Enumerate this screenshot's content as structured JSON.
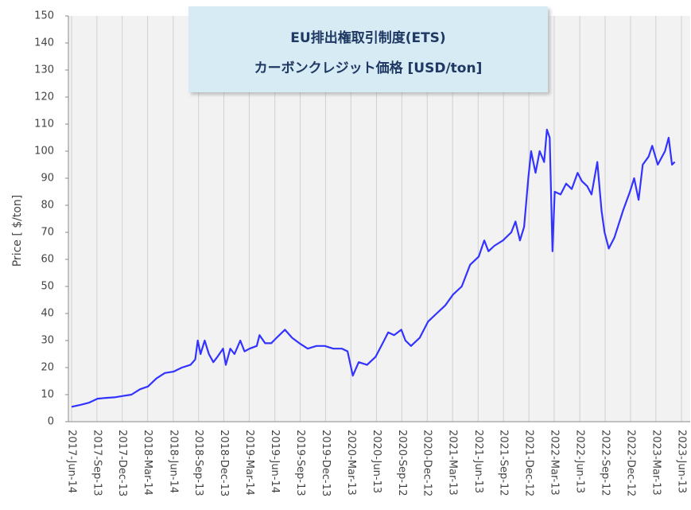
{
  "chart_data": {
    "type": "line",
    "title": "EU排出権取引制度(ETS)",
    "subtitle": "カーボンクレジット価格 [USD/ton]",
    "y_label": "Price [ $/ton]",
    "grid": true,
    "series": [
      {
        "name": "Price",
        "color": "#3333ff",
        "x": [
          "2017-06-14",
          "2017-07-15",
          "2017-08-15",
          "2017-09-15",
          "2017-10-15",
          "2017-11-15",
          "2017-12-15",
          "2018-01-15",
          "2018-02-15",
          "2018-03-15",
          "2018-04-15",
          "2018-05-15",
          "2018-06-15",
          "2018-07-15",
          "2018-08-15",
          "2018-09-01",
          "2018-09-10",
          "2018-09-20",
          "2018-10-05",
          "2018-10-20",
          "2018-11-05",
          "2018-11-20",
          "2018-12-10",
          "2018-12-20",
          "2019-01-05",
          "2019-01-20",
          "2019-02-10",
          "2019-02-25",
          "2019-03-15",
          "2019-04-10",
          "2019-04-20",
          "2019-05-10",
          "2019-06-01",
          "2019-06-20",
          "2019-07-10",
          "2019-07-20",
          "2019-08-15",
          "2019-09-10",
          "2019-10-10",
          "2019-11-10",
          "2019-12-10",
          "2020-01-10",
          "2020-02-10",
          "2020-03-01",
          "2020-03-20",
          "2020-04-10",
          "2020-05-10",
          "2020-06-10",
          "2020-07-10",
          "2020-07-25",
          "2020-08-15",
          "2020-09-10",
          "2020-09-25",
          "2020-10-15",
          "2020-11-15",
          "2020-12-15",
          "2021-01-15",
          "2021-02-15",
          "2021-03-15",
          "2021-04-15",
          "2021-05-15",
          "2021-06-15",
          "2021-07-05",
          "2021-07-20",
          "2021-08-10",
          "2021-09-10",
          "2021-10-10",
          "2021-10-25",
          "2021-11-10",
          "2021-11-25",
          "2021-12-10",
          "2021-12-20",
          "2022-01-05",
          "2022-01-20",
          "2022-02-05",
          "2022-02-15",
          "2022-02-25",
          "2022-03-07",
          "2022-03-15",
          "2022-04-05",
          "2022-04-25",
          "2022-05-15",
          "2022-06-05",
          "2022-06-20",
          "2022-07-10",
          "2022-07-25",
          "2022-08-15",
          "2022-08-30",
          "2022-09-10",
          "2022-09-25",
          "2022-10-15",
          "2022-11-15",
          "2022-12-10",
          "2022-12-25",
          "2023-01-10",
          "2023-01-25",
          "2023-02-15",
          "2023-02-28",
          "2023-03-20",
          "2023-04-15",
          "2023-04-28",
          "2023-05-10",
          "2023-05-20"
        ],
        "values": [
          5.5,
          6.2,
          7,
          8.5,
          8.8,
          9,
          9.5,
          10,
          12,
          13,
          16,
          18,
          18.5,
          20,
          21,
          23,
          30,
          25,
          30,
          25,
          22,
          24,
          27,
          21,
          27,
          25,
          30,
          26,
          27,
          28,
          32,
          29,
          29,
          31,
          33,
          34,
          31,
          29,
          27,
          28,
          28,
          27,
          27,
          26,
          17,
          22,
          21,
          24,
          30,
          33,
          32,
          34,
          30,
          28,
          31,
          37,
          40,
          43,
          47,
          50,
          58,
          61,
          67,
          63,
          65,
          67,
          70,
          74,
          67,
          72,
          90,
          100,
          92,
          100,
          96,
          108,
          105,
          63,
          85,
          84,
          88,
          86,
          92,
          89,
          87,
          84,
          96,
          78,
          70,
          64,
          68,
          78,
          85,
          90,
          82,
          95,
          98,
          102,
          95,
          100,
          105,
          95,
          96
        ]
      }
    ],
    "xlim": [
      "2017-06-14",
      "2023-06-13"
    ],
    "xticks": [
      {
        "value": "2017-06-14",
        "label": "2017-Jun-14"
      },
      {
        "value": "2017-09-13",
        "label": "2017-Sep-13"
      },
      {
        "value": "2017-12-13",
        "label": "2017-Dec-13"
      },
      {
        "value": "2018-03-14",
        "label": "2018-Mar-14"
      },
      {
        "value": "2018-06-14",
        "label": "2018-Jun-14"
      },
      {
        "value": "2018-09-13",
        "label": "2018-Sep-13"
      },
      {
        "value": "2018-12-13",
        "label": "2018-Dec-13"
      },
      {
        "value": "2019-03-14",
        "label": "2019-Mar-14"
      },
      {
        "value": "2019-06-14",
        "label": "2019-Jun-14"
      },
      {
        "value": "2019-09-13",
        "label": "2019-Sep-13"
      },
      {
        "value": "2019-12-13",
        "label": "2019-Dec-13"
      },
      {
        "value": "2020-03-13",
        "label": "2020-Mar-13"
      },
      {
        "value": "2020-06-13",
        "label": "2020-Jun-13"
      },
      {
        "value": "2020-09-12",
        "label": "2020-Sep-12"
      },
      {
        "value": "2020-12-12",
        "label": "2020-Dec-12"
      },
      {
        "value": "2021-03-13",
        "label": "2021-Mar-13"
      },
      {
        "value": "2021-06-13",
        "label": "2021-Jun-13"
      },
      {
        "value": "2021-09-12",
        "label": "2021-Sep-12"
      },
      {
        "value": "2021-12-12",
        "label": "2021-Dec-12"
      },
      {
        "value": "2022-03-13",
        "label": "2022-Mar-13"
      },
      {
        "value": "2022-06-13",
        "label": "2022-Jun-13"
      },
      {
        "value": "2022-09-12",
        "label": "2022-Sep-12"
      },
      {
        "value": "2022-12-12",
        "label": "2022-Dec-12"
      },
      {
        "value": "2023-03-13",
        "label": "2023-Mar-13"
      },
      {
        "value": "2023-06-13",
        "label": "2023-Jun-13"
      }
    ],
    "ylim": [
      0,
      150
    ],
    "yticks": [
      0,
      10,
      20,
      30,
      40,
      50,
      60,
      70,
      80,
      90,
      100,
      110,
      120,
      130,
      140,
      150
    ]
  }
}
